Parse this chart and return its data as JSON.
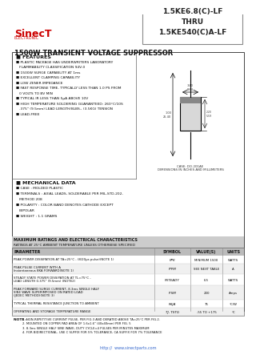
{
  "title_part": "1.5KE6.8(C)-LF\nTHRU\n1.5KE540(C)A-LF",
  "logo_text": "SinecT",
  "logo_sub": "ELECTRONIC",
  "main_title": "1500W TRANSIENT VOLTAGE SUPPRESSOR",
  "bg_color": "#ffffff",
  "border_color": "#000000",
  "red_color": "#cc0000",
  "features_title": "FEATURES",
  "features": [
    "PLASTIC PACKAGE HAS UNDERWRITERS LABORATORY",
    "  FLAMMABILITY CLASSIFICATION 94V-0",
    "1500W SURGE CAPABILITY AT 1ms",
    "EXCELLENT CLAMPING CAPABILITY",
    "LOW ZENER IMPEDANCE",
    "FAST RESPONSE TIME, TYPICALLY LESS THAN 1.0 PS FROM",
    "  0 VOLTS TO BV MIN",
    "TYPICAL IR LESS THAN 5μA ABOVE 10V",
    "HIGH TEMPERATURE SOLDERING GUARANTEED: 260°C/10S",
    "  .375\" (9.5mm) LEAD LENGTH/8LBS., (3.5KG) TENSION",
    "LEAD-FREE"
  ],
  "mech_title": "MECHANICAL DATA",
  "mech": [
    "CASE : MOLDED PLASTIC",
    "TERMINALS : AXIAL LEADS, SOLDERABLE PER MIL-STD-202,",
    "  METHOD 208",
    "POLARITY : COLOR BAND DENOTES CATHODE EXCEPT",
    "  BIPOLAR",
    "WEIGHT : 1.1 GRAMS"
  ],
  "table_header": [
    "PARAMETER",
    "SYMBOL",
    "VALUE(S)",
    "UNITS"
  ],
  "table_rows": [
    [
      "PEAK POWER DISSIPATION AT TA=25°C , (8/20μs pulse)(NOTE 1)",
      "PPK",
      "MINIMUM 1500",
      "WATTS"
    ],
    [
      "PEAK PULSE CURRENT WITH A\nInstantaneous 8KA FORWARD(NOTE 1)",
      "IPPM",
      "SEE NEXT TABLE",
      "A"
    ],
    [
      "STEADY STATE POWER DISSIPATION AT TL=75°C ,\nLEAD LENGTH 0.375\" (9.5mm) (NOTE2)",
      "PSTEADY",
      "6.5",
      "WATTS"
    ],
    [
      "PEAK FORWARD SURGE CURRENT, 8.3ms SINGLE HALF\nSINE WAVE SUPERIMPOSED ON RATED LOAD\n(JEDEC METHOD)(NOTE 3)",
      "IFSM",
      "200",
      "Amps"
    ],
    [
      "TYPICAL THERMAL RESISTANCE JUNCTION TO AMBIENT",
      "RθJA",
      "75",
      "°C/W"
    ],
    [
      "OPERATING AND STORAGE TEMPERATURE RANGE",
      "TJ, TSTG",
      "-55 TO +175",
      "°C"
    ]
  ],
  "notes": [
    "1. NON-REPETITIVE CURRENT PULSE, PER FIG.3 AND DERATED ABOVE TA=25°C PER FIG.2.",
    "2. MOUNTED ON COPPER PAD AREA OF 1.6x1.6\" (40x40mm) PER FIG. 5",
    "3. 8.3ms SINGLE HALF SINE WAVE, DUTY CYCLE=4 PULSES PER MINUTES MAXIMUM",
    "4. FOR BIDIRECTIONAL, USE C SUFFIX FOR 5% TOLERANCE, CA SUFFIX FOR 7% TOLERANCE"
  ],
  "footer_url": "http://  www.sinectparts.com",
  "case_label": "CASE: DO-201AE\nDIMENSIONS IN INCHES AND MILLIMETERS"
}
